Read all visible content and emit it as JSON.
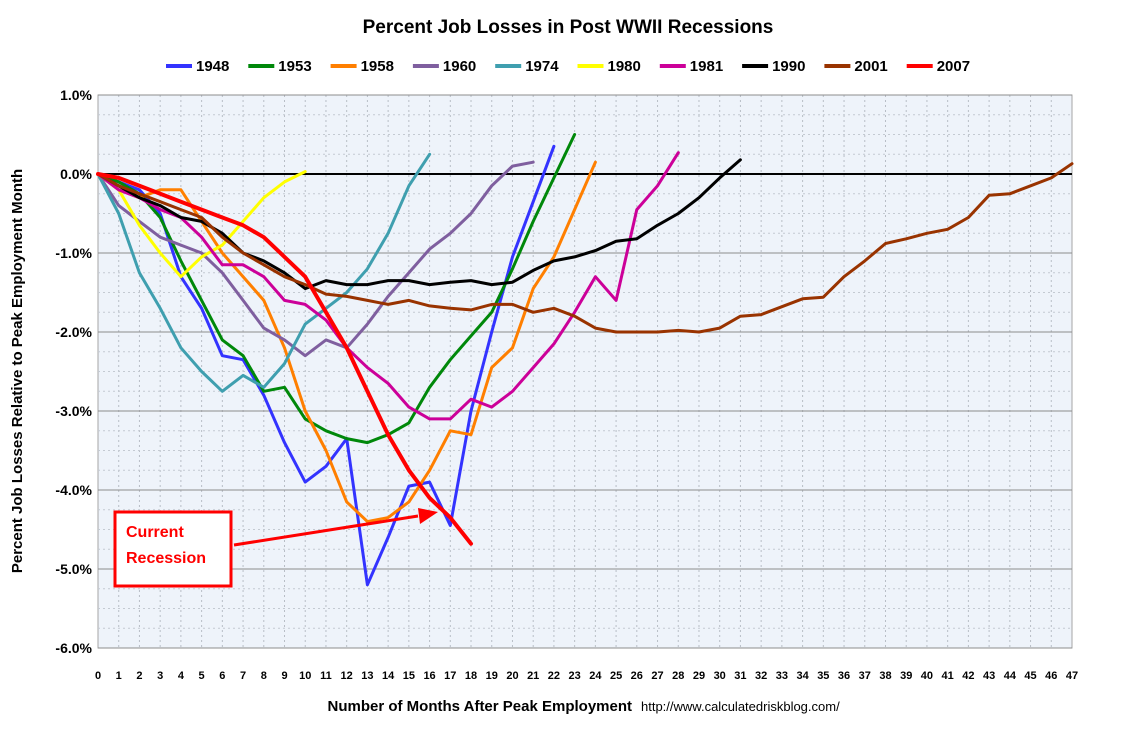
{
  "chart_data": {
    "type": "line",
    "title": "Percent Job Losses in Post WWII Recessions",
    "xlabel": "Number of Months After Peak Employment",
    "ylabel": "Percent Job Losses Relative to Peak Employment Month",
    "source": "http://www.calculatedriskblog.com/",
    "xlim": [
      0,
      47
    ],
    "ylim": [
      -6.0,
      1.0
    ],
    "x_ticks": [
      "0",
      "1",
      "2",
      "3",
      "4",
      "5",
      "6",
      "7",
      "8",
      "9",
      "10",
      "11",
      "12",
      "13",
      "14",
      "15",
      "16",
      "17",
      "18",
      "19",
      "20",
      "21",
      "22",
      "23",
      "24",
      "25",
      "26",
      "27",
      "28",
      "29",
      "30",
      "31",
      "32",
      "33",
      "34",
      "35",
      "36",
      "37",
      "38",
      "39",
      "40",
      "41",
      "42",
      "43",
      "44",
      "45",
      "46",
      "47"
    ],
    "y_ticks": [
      {
        "value": 1.0,
        "label": "1.0%"
      },
      {
        "value": 0.0,
        "label": "0.0%"
      },
      {
        "value": -1.0,
        "label": "-1.0%"
      },
      {
        "value": -2.0,
        "label": "-2.0%"
      },
      {
        "value": -3.0,
        "label": "-3.0%"
      },
      {
        "value": -4.0,
        "label": "-4.0%"
      },
      {
        "value": -5.0,
        "label": "-5.0%"
      },
      {
        "value": -6.0,
        "label": "-6.0%"
      }
    ],
    "grid": true,
    "legend_position": "top",
    "series": [
      {
        "name": "1948",
        "color": "#3333ff",
        "y": [
          0,
          -0.1,
          -0.2,
          -0.5,
          -1.3,
          -1.7,
          -2.3,
          -2.35,
          -2.8,
          -3.4,
          -3.9,
          -3.7,
          -3.35,
          -5.2,
          -4.6,
          -3.95,
          -3.9,
          -4.45,
          -3.0,
          -2.0,
          -1.05,
          -0.35,
          0.35
        ]
      },
      {
        "name": "1953",
        "color": "#00880a",
        "y": [
          0,
          -0.1,
          -0.25,
          -0.55,
          -1.1,
          -1.6,
          -2.1,
          -2.3,
          -2.75,
          -2.7,
          -3.1,
          -3.25,
          -3.35,
          -3.4,
          -3.3,
          -3.15,
          -2.7,
          -2.35,
          -2.05,
          -1.75,
          -1.2,
          -0.6,
          -0.05,
          0.5
        ]
      },
      {
        "name": "1958",
        "color": "#ff7f00",
        "y": [
          0,
          -0.2,
          -0.3,
          -0.2,
          -0.2,
          -0.6,
          -1.0,
          -1.3,
          -1.6,
          -2.2,
          -3.0,
          -3.5,
          -4.15,
          -4.4,
          -4.35,
          -4.15,
          -3.75,
          -3.25,
          -3.3,
          -2.45,
          -2.2,
          -1.45,
          -1.05,
          -0.45,
          0.15
        ]
      },
      {
        "name": "1960",
        "color": "#7f5f9f",
        "y": [
          0,
          -0.4,
          -0.6,
          -0.8,
          -0.9,
          -1.0,
          -1.25,
          -1.6,
          -1.95,
          -2.1,
          -2.3,
          -2.1,
          -2.2,
          -1.9,
          -1.55,
          -1.25,
          -0.95,
          -0.75,
          -0.5,
          -0.15,
          0.1,
          0.15
        ]
      },
      {
        "name": "1974",
        "color": "#3f9faf",
        "y": [
          0,
          -0.5,
          -1.25,
          -1.7,
          -2.2,
          -2.5,
          -2.75,
          -2.55,
          -2.7,
          -2.4,
          -1.9,
          -1.7,
          -1.5,
          -1.2,
          -0.75,
          -0.15,
          0.25
        ]
      },
      {
        "name": "1980",
        "color": "#ffff00",
        "y": [
          0,
          -0.2,
          -0.65,
          -1.0,
          -1.3,
          -1.05,
          -0.9,
          -0.6,
          -0.3,
          -0.1,
          0.03
        ]
      },
      {
        "name": "1981",
        "color": "#cc0099",
        "y": [
          0,
          -0.2,
          -0.3,
          -0.45,
          -0.55,
          -0.8,
          -1.15,
          -1.15,
          -1.3,
          -1.6,
          -1.65,
          -1.85,
          -2.2,
          -2.45,
          -2.65,
          -2.95,
          -3.1,
          -3.1,
          -2.85,
          -2.95,
          -2.75,
          -2.45,
          -2.15,
          -1.75,
          -1.3,
          -1.6,
          -0.45,
          -0.15,
          0.27
        ]
      },
      {
        "name": "1990",
        "color": "#000000",
        "y": [
          0,
          -0.15,
          -0.3,
          -0.4,
          -0.55,
          -0.6,
          -0.75,
          -1.0,
          -1.1,
          -1.25,
          -1.45,
          -1.35,
          -1.4,
          -1.4,
          -1.35,
          -1.35,
          -1.4,
          -1.37,
          -1.35,
          -1.4,
          -1.37,
          -1.22,
          -1.1,
          -1.05,
          -0.97,
          -0.85,
          -0.82,
          -0.65,
          -0.5,
          -0.3,
          -0.05,
          0.18
        ]
      },
      {
        "name": "2001",
        "color": "#993300",
        "y": [
          0,
          -0.15,
          -0.25,
          -0.35,
          -0.45,
          -0.55,
          -0.8,
          -1.0,
          -1.15,
          -1.3,
          -1.4,
          -1.52,
          -1.55,
          -1.6,
          -1.65,
          -1.6,
          -1.67,
          -1.7,
          -1.72,
          -1.65,
          -1.65,
          -1.75,
          -1.7,
          -1.8,
          -1.95,
          -2.0,
          -2.0,
          -2.0,
          -1.98,
          -2.0,
          -1.95,
          -1.8,
          -1.78,
          -1.68,
          -1.58,
          -1.56,
          -1.3,
          -1.1,
          -0.88,
          -0.82,
          -0.75,
          -0.7,
          -0.55,
          -0.27,
          -0.25,
          -0.15,
          -0.05,
          0.13
        ]
      },
      {
        "name": "2007",
        "color": "#ff0000",
        "y": [
          0,
          -0.05,
          -0.15,
          -0.25,
          -0.35,
          -0.45,
          -0.55,
          -0.65,
          -0.8,
          -1.05,
          -1.3,
          -1.75,
          -2.2,
          -2.75,
          -3.3,
          -3.75,
          -4.1,
          -4.35,
          -4.68
        ]
      }
    ],
    "annotation": {
      "lines": [
        "Current",
        "Recession"
      ],
      "color": "#ff0000"
    }
  }
}
